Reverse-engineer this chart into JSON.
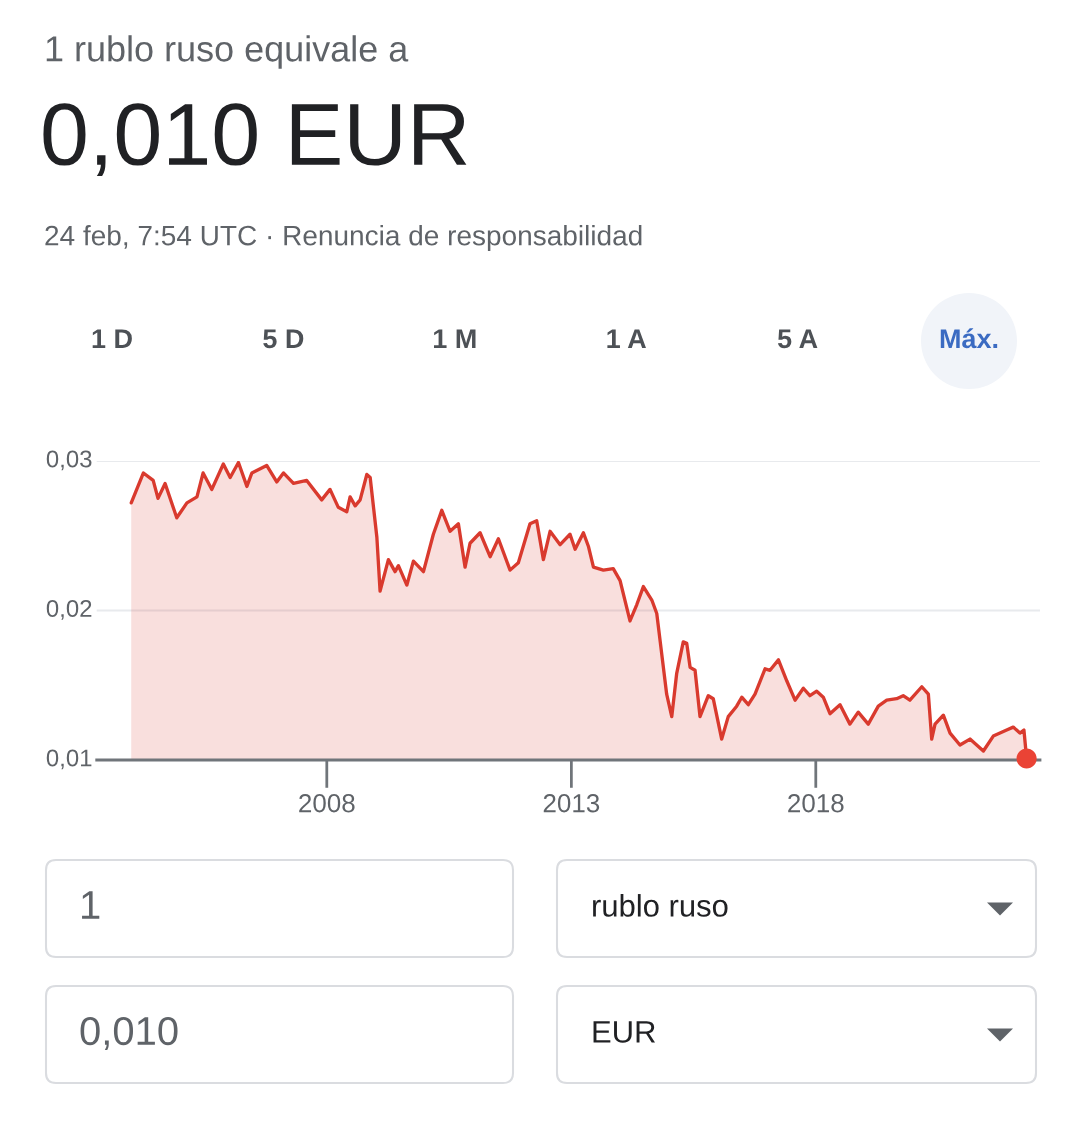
{
  "chart_data": {
    "type": "area",
    "title": "1 rublo ruso equivale a",
    "subtitle": "0,010 EUR",
    "annotations": [
      "24 feb, 7:54 UTC · Renuncia de responsabilidad",
      "1 D",
      "5 D",
      "1 M",
      "1 A",
      "5 A",
      "Máx.",
      "1",
      "rublo ruso",
      "0,010",
      "EUR"
    ],
    "x": [
      "2004-01-01",
      "2004-04-01",
      "2004-06-13",
      "2004-07-19",
      "2004-09-10",
      "2004-12-06",
      "2005-02-20",
      "2005-05-06",
      "2005-06-21",
      "2005-08-25",
      "2005-11-19",
      "2006-01-09",
      "2006-03-12",
      "2006-05-14",
      "2006-06-20",
      "2006-10-09",
      "2006-12-23",
      "2007-02-11",
      "2007-04-27",
      "2007-08-04",
      "2007-11-24",
      "2008-01-25",
      "2008-03-27",
      "2008-05-29",
      "2008-06-23",
      "2008-07-31",
      "2008-09-06",
      "2008-10-26",
      "2008-11-20",
      "2009-01-09",
      "2009-02-02",
      "2009-04-05",
      "2009-05-25",
      "2009-06-19",
      "2009-08-21",
      "2009-10-09",
      "2009-12-23",
      "2010-03-07",
      "2010-05-09",
      "2010-07-10",
      "2010-09-10",
      "2010-10-30",
      "2010-12-06",
      "2011-02-19",
      "2011-05-05",
      "2011-07-06",
      "2011-10-01",
      "2011-12-02",
      "2012-02-27",
      "2012-04-17",
      "2012-06-06",
      "2012-07-26",
      "2012-10-09",
      "2012-12-22",
      "2013-01-29",
      "2013-04-01",
      "2013-05-08",
      "2013-06-15",
      "2013-08-28",
      "2013-11-10",
      "2013-12-31",
      "2014-03-15",
      "2014-05-05",
      "2014-06-23",
      "2014-08-25",
      "2014-10-01",
      "2014-11-07",
      "2014-12-14",
      "2015-01-21",
      "2015-02-27",
      "2015-04-17",
      "2015-05-13",
      "2015-06-07",
      "2015-07-14",
      "2015-08-20",
      "2015-10-21",
      "2015-11-27",
      "2016-01-29",
      "2016-03-18",
      "2016-05-20",
      "2016-06-27",
      "2016-08-15",
      "2016-10-04",
      "2016-12-18",
      "2017-01-24",
      "2017-03-28",
      "2017-05-29",
      "2017-07-30",
      "2017-09-30",
      "2017-11-18",
      "2018-01-08",
      "2018-02-26",
      "2018-04-17",
      "2018-07-01",
      "2018-09-13",
      "2018-11-14",
      "2019-01-28",
      "2019-04-13",
      "2019-06-15",
      "2019-08-28",
      "2019-10-16",
      "2019-12-05",
      "2020-03-03",
      "2020-04-21",
      "2020-05-16",
      "2020-06-10",
      "2020-08-11",
      "2020-09-30",
      "2020-12-13",
      "2021-02-26",
      "2021-06-06",
      "2021-08-19",
      "2021-11-27",
      "2022-01-15",
      "2022-03-06",
      "2022-04-05",
      "2022-04-25"
    ],
    "series": [
      {
        "color": "#d93a2e",
        "values": [
          0.0272,
          0.0292,
          0.0287,
          0.0275,
          0.0285,
          0.0262,
          0.0272,
          0.0276,
          0.0292,
          0.0281,
          0.0298,
          0.0289,
          0.0299,
          0.0283,
          0.0292,
          0.0297,
          0.0286,
          0.0292,
          0.0285,
          0.0287,
          0.0274,
          0.0281,
          0.0269,
          0.0266,
          0.0276,
          0.027,
          0.0274,
          0.0291,
          0.0289,
          0.0249,
          0.0213,
          0.0234,
          0.0226,
          0.023,
          0.0217,
          0.0233,
          0.0226,
          0.0251,
          0.0267,
          0.0253,
          0.0258,
          0.0229,
          0.0245,
          0.0252,
          0.0236,
          0.0248,
          0.0227,
          0.0232,
          0.0258,
          0.026,
          0.0234,
          0.0253,
          0.0244,
          0.0251,
          0.0241,
          0.0252,
          0.0243,
          0.0229,
          0.0227,
          0.0228,
          0.022,
          0.0193,
          0.0204,
          0.0216,
          0.0207,
          0.0198,
          0.0171,
          0.0144,
          0.0129,
          0.0158,
          0.0179,
          0.0178,
          0.0162,
          0.016,
          0.0129,
          0.0143,
          0.0141,
          0.0114,
          0.0129,
          0.0136,
          0.0142,
          0.0137,
          0.0144,
          0.0161,
          0.016,
          0.0167,
          0.0153,
          0.014,
          0.0148,
          0.0143,
          0.0146,
          0.0142,
          0.0131,
          0.0137,
          0.0124,
          0.0132,
          0.0124,
          0.0136,
          0.014,
          0.0141,
          0.0143,
          0.014,
          0.0149,
          0.0144,
          0.0114,
          0.0124,
          0.013,
          0.0118,
          0.011,
          0.0114,
          0.0106,
          0.0116,
          0.012,
          0.0122,
          0.0118,
          0.012,
          0.0101
        ]
      },
      {
        "type": "scatter",
        "color": "#ea4335",
        "marker": "circle",
        "x": [
          "2022-04-25"
        ],
        "values": [
          0.0101
        ]
      }
    ],
    "xlim": [
      "2003-04-18",
      "2022-08-03"
    ],
    "xticks": [
      "2008",
      "2013",
      "2018"
    ],
    "ylim": [
      0.01,
      0.03
    ],
    "yticks": [
      {
        "value": 0.01,
        "label": "0,01"
      },
      {
        "value": 0.02,
        "label": "0,02"
      },
      {
        "value": 0.03,
        "label": "0,03"
      }
    ],
    "grid": "y"
  }
}
